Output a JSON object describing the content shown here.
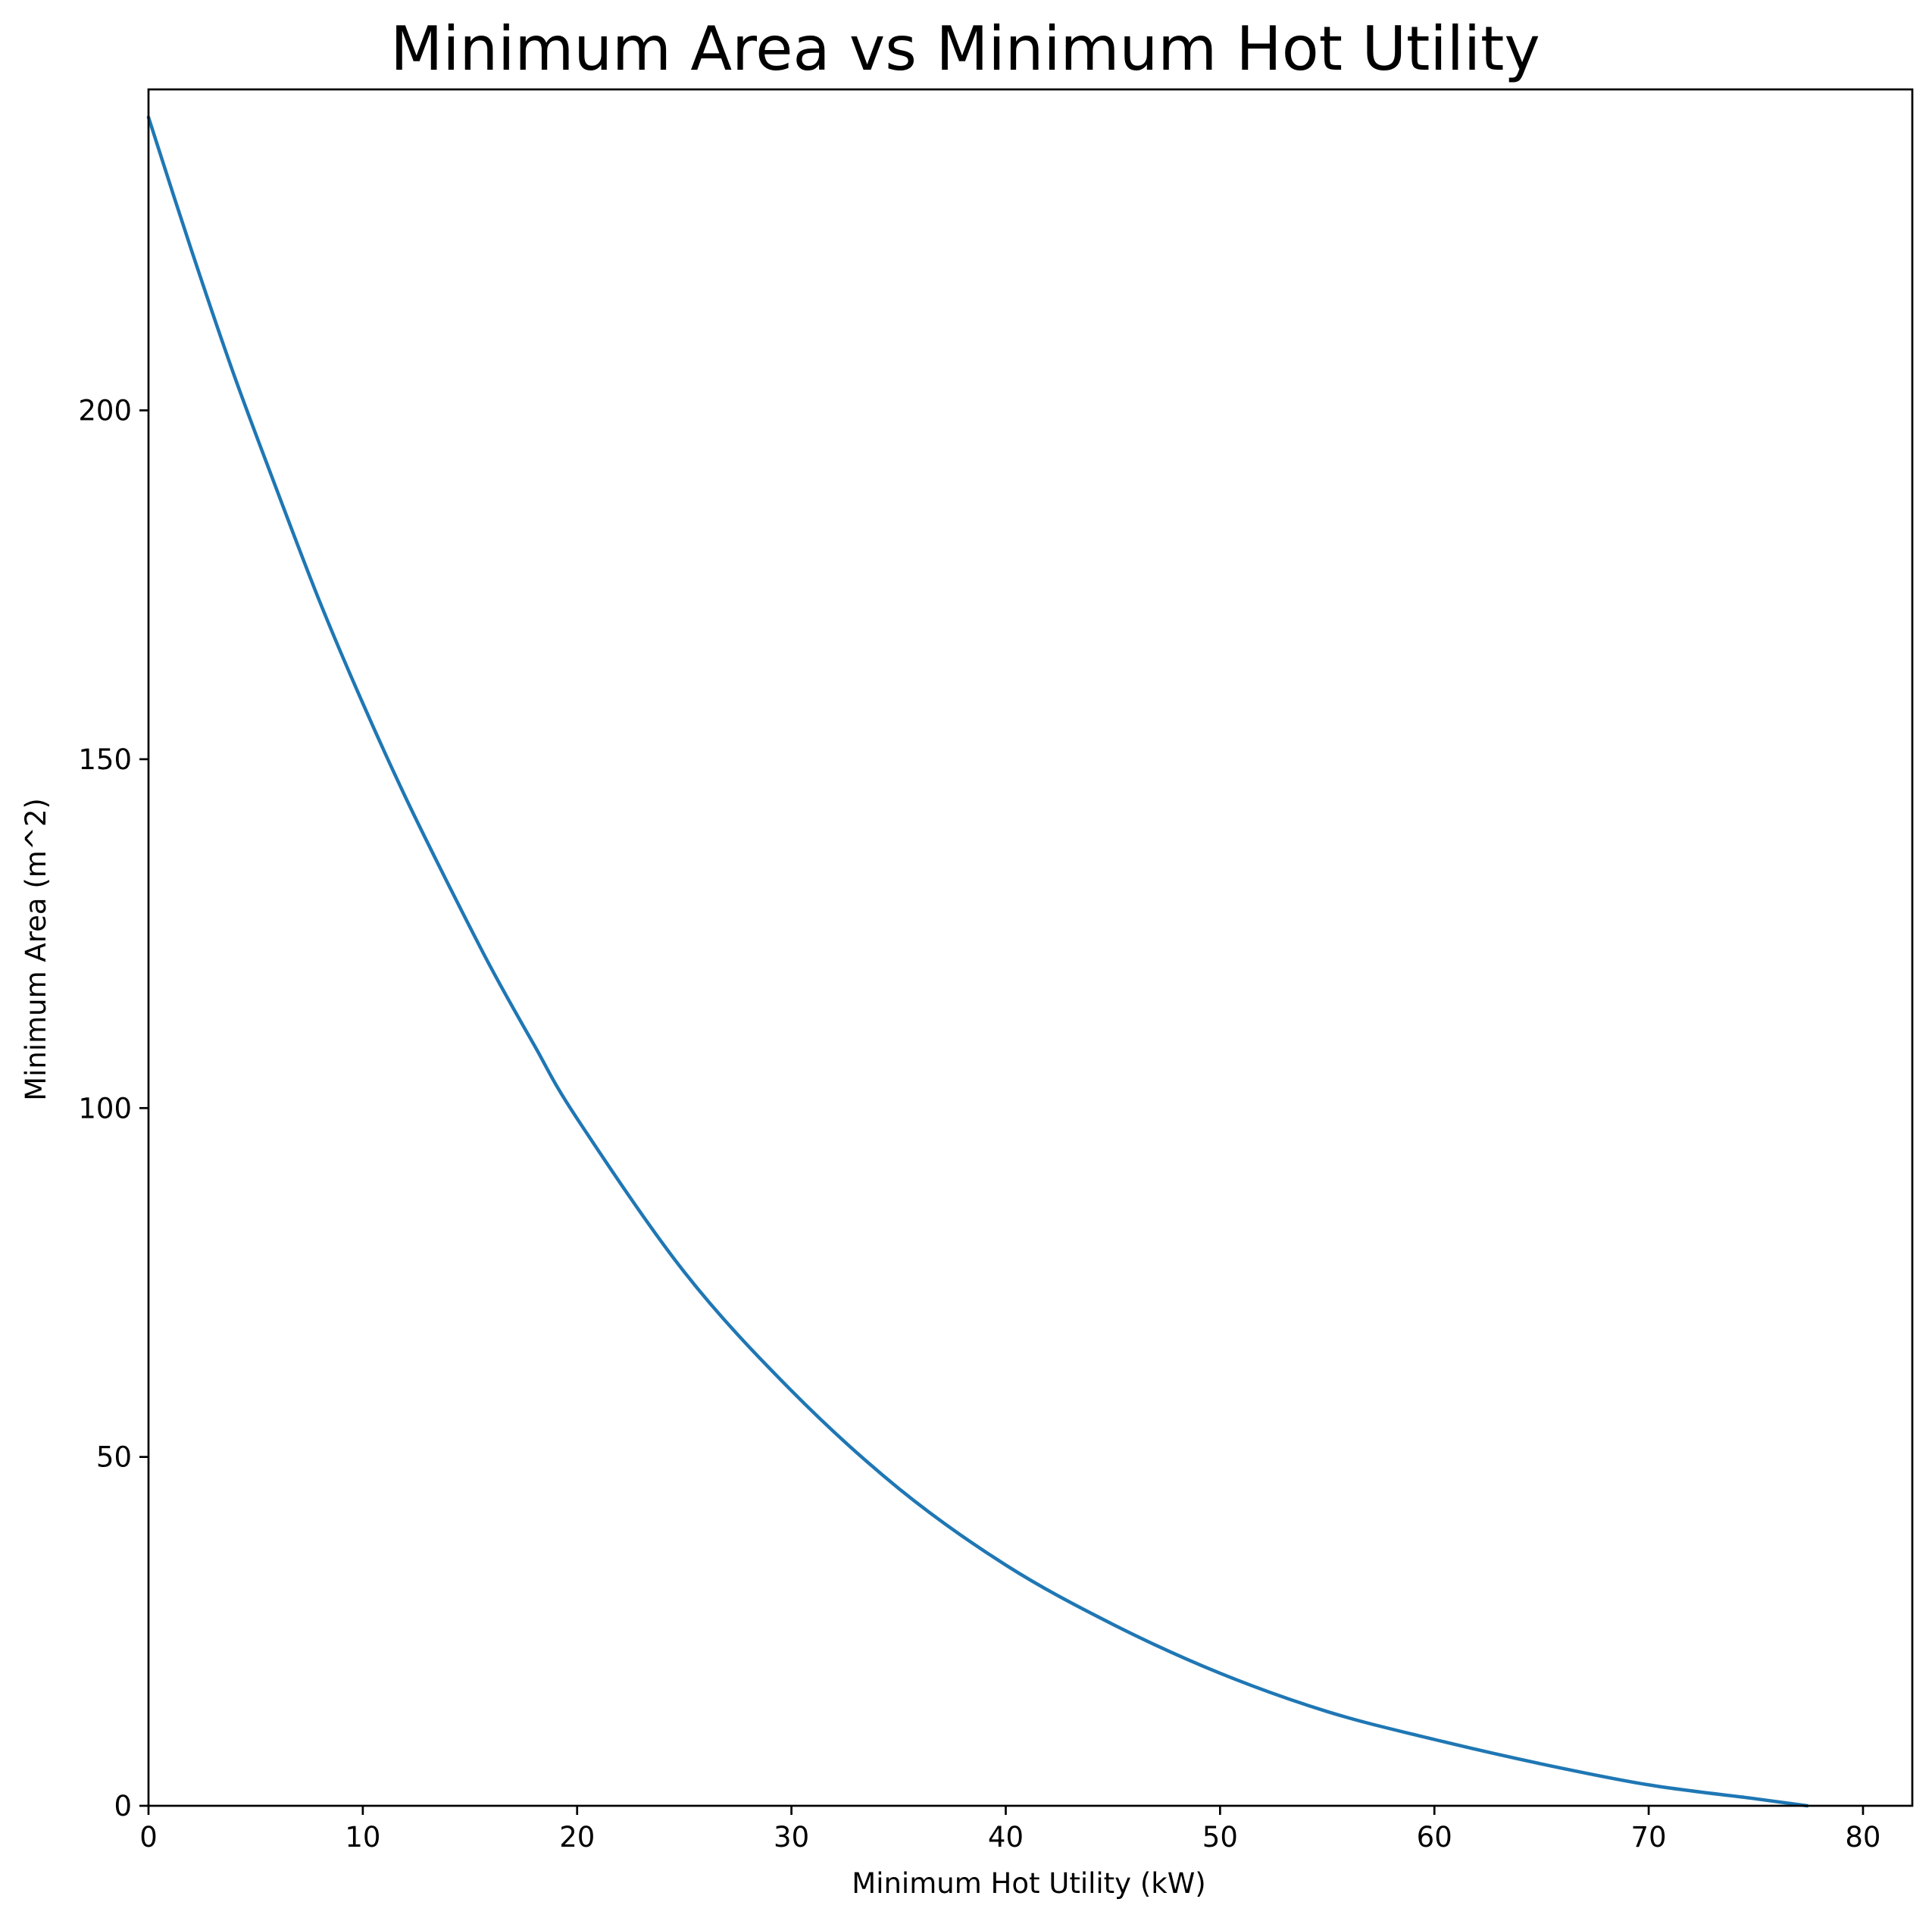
{
  "chart_data": {
    "type": "line",
    "title": "Minimum Area vs Minimum Hot Utility",
    "xlabel": "Minimum Hot Utility (kW)",
    "ylabel": "Minimum Area (m^2)",
    "xlim": [
      0,
      82.3
    ],
    "ylim": [
      0,
      246
    ],
    "x_ticks": [
      0,
      10,
      20,
      30,
      40,
      50,
      60,
      70,
      80
    ],
    "y_ticks": [
      0,
      50,
      100,
      150,
      200
    ],
    "grid": false,
    "legend": "none",
    "series": [
      {
        "color": "#1f77b4",
        "x": [
          0,
          2,
          4,
          6,
          8,
          10,
          12,
          14,
          16,
          18,
          20,
          25,
          30,
          35,
          40,
          45,
          50,
          55,
          60,
          65,
          70,
          75,
          77.4
        ],
        "y": [
          242,
          223,
          205,
          188.5,
          172.5,
          158,
          144.5,
          132,
          120,
          109,
          98.5,
          76.5,
          59.5,
          45.5,
          34.5,
          26,
          19,
          13.5,
          9.5,
          6,
          3,
          1,
          0
        ]
      }
    ]
  }
}
